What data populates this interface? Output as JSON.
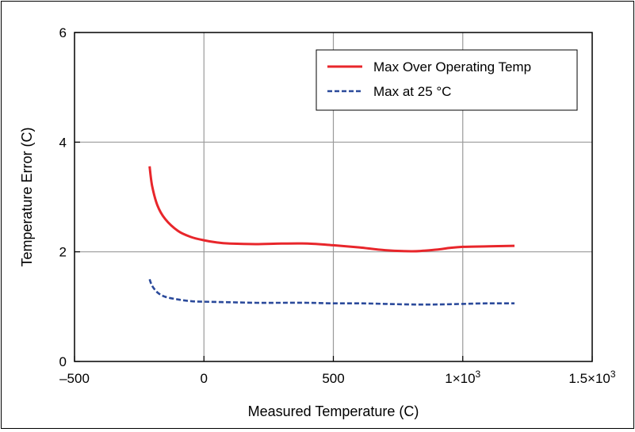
{
  "chart_data": {
    "type": "line",
    "title": "",
    "xlabel": "Measured Temperature (C)",
    "ylabel": "Temperature Error (C)",
    "xlim": [
      -500,
      1500
    ],
    "ylim": [
      0,
      6
    ],
    "grid": true,
    "legend_position": "top-right",
    "x_ticks": [
      {
        "value": -500,
        "label": "–500"
      },
      {
        "value": 0,
        "label": "0"
      },
      {
        "value": 500,
        "label": "500"
      },
      {
        "value": 1000,
        "label": "1×10",
        "sup": "3"
      },
      {
        "value": 1500,
        "label": "1.5×10",
        "sup": "3"
      }
    ],
    "y_ticks": [
      {
        "value": 0,
        "label": "0"
      },
      {
        "value": 2,
        "label": "2"
      },
      {
        "value": 4,
        "label": "4"
      },
      {
        "value": 6,
        "label": "6"
      }
    ],
    "series": [
      {
        "name": "Max Over Operating Temp",
        "color": "#e8262b",
        "style": "solid",
        "x": [
          -210,
          -200,
          -180,
          -150,
          -100,
          -50,
          0,
          50,
          100,
          200,
          300,
          400,
          500,
          600,
          700,
          800,
          850,
          900,
          950,
          1000,
          1100,
          1200
        ],
        "y": [
          3.56,
          3.2,
          2.85,
          2.6,
          2.38,
          2.27,
          2.21,
          2.17,
          2.15,
          2.14,
          2.15,
          2.15,
          2.12,
          2.08,
          2.03,
          2.01,
          2.02,
          2.04,
          2.07,
          2.09,
          2.1,
          2.11
        ]
      },
      {
        "name": "Max at 25 °C",
        "color": "#2b4a9b",
        "style": "dashed",
        "x": [
          -210,
          -200,
          -180,
          -150,
          -100,
          -50,
          0,
          100,
          200,
          300,
          400,
          500,
          600,
          700,
          800,
          900,
          1000,
          1100,
          1200
        ],
        "y": [
          1.5,
          1.38,
          1.26,
          1.18,
          1.13,
          1.1,
          1.09,
          1.08,
          1.07,
          1.07,
          1.07,
          1.06,
          1.06,
          1.05,
          1.04,
          1.04,
          1.05,
          1.06,
          1.06
        ]
      }
    ]
  }
}
